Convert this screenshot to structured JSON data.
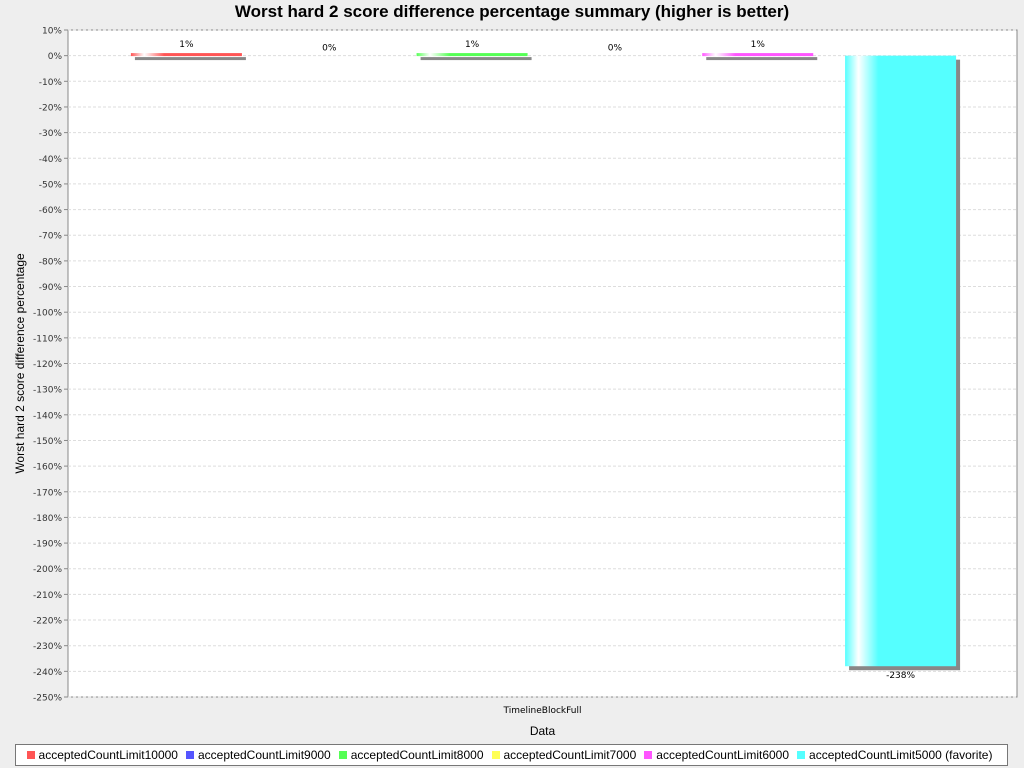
{
  "chart_data": {
    "type": "bar",
    "title": "Worst hard 2 score difference percentage summary (higher is better)",
    "xlabel": "Data",
    "ylabel": "Worst hard 2 score difference percentage",
    "categories": [
      "TimelineBlockFull"
    ],
    "ylim": [
      -250,
      10
    ],
    "ytick_step": 10,
    "grid": true,
    "legend_position": "bottom",
    "series": [
      {
        "name": "acceptedCountLimit10000",
        "values": [
          1
        ],
        "label": "1%",
        "color": "#ff5555"
      },
      {
        "name": "acceptedCountLimit9000",
        "values": [
          0
        ],
        "label": "0%",
        "color": "#5555ff"
      },
      {
        "name": "acceptedCountLimit8000",
        "values": [
          1
        ],
        "label": "1%",
        "color": "#55ff55"
      },
      {
        "name": "acceptedCountLimit7000",
        "values": [
          0
        ],
        "label": "0%",
        "color": "#ffff55"
      },
      {
        "name": "acceptedCountLimit6000",
        "values": [
          1
        ],
        "label": "1%",
        "color": "#ff55ff"
      },
      {
        "name": "acceptedCountLimit5000 (favorite)",
        "values": [
          -238
        ],
        "label": "-238%",
        "color": "#55ffff"
      }
    ]
  }
}
